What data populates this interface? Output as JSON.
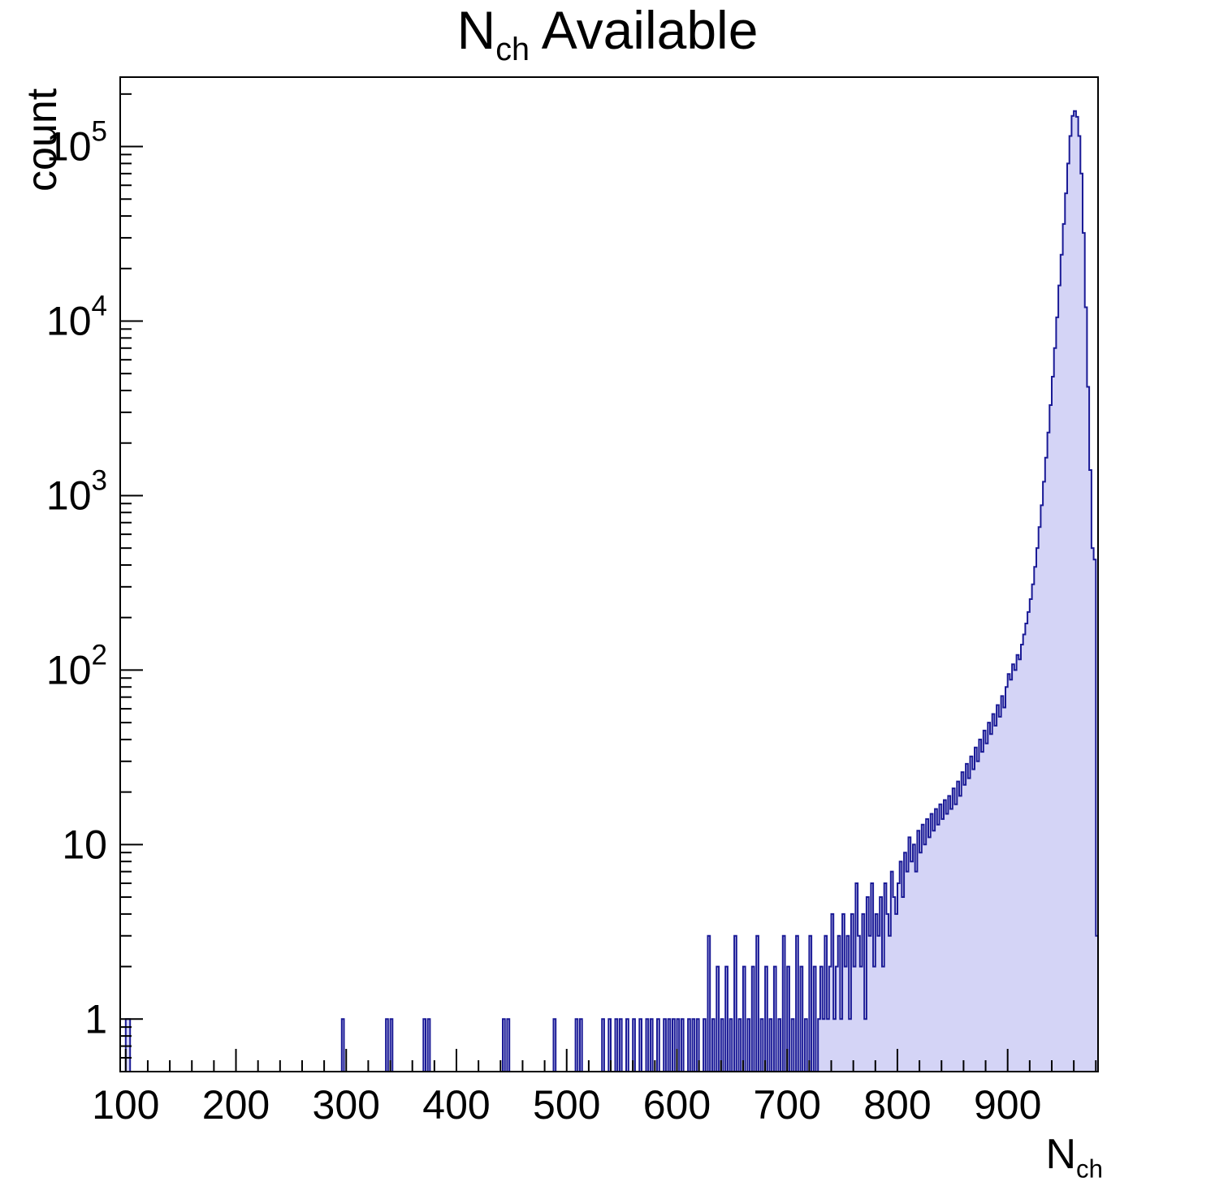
{
  "chart_data": {
    "type": "histogram",
    "title": "N_ch Available",
    "title_parts": {
      "main": "N",
      "sub": "ch",
      "rest": " Available"
    },
    "xlabel": "N_ch",
    "xlabel_parts": {
      "main": "N",
      "sub": "ch"
    },
    "ylabel": "count",
    "x_range": [
      95,
      982
    ],
    "y_range": [
      0.5,
      250000
    ],
    "y_scale": "log",
    "grid": false,
    "legend": "none",
    "bin_width": 2,
    "x_major_ticks": [
      100,
      200,
      300,
      400,
      500,
      600,
      700,
      800,
      900
    ],
    "x_minor_step": 20,
    "y_major_ticks": [
      {
        "v": 1,
        "label": "1"
      },
      {
        "v": 10,
        "label": "10"
      },
      {
        "v": 100,
        "label": "10",
        "exp": "2"
      },
      {
        "v": 1000,
        "label": "10",
        "exp": "3"
      },
      {
        "v": 10000,
        "label": "10",
        "exp": "4"
      },
      {
        "v": 100000,
        "label": "10",
        "exp": "5"
      }
    ],
    "colors": {
      "line": "#1a1a96",
      "fill": "#d4d4f6",
      "frame": "#000000"
    },
    "bins": [
      [
        100,
        1
      ],
      [
        102,
        1
      ],
      [
        296,
        1
      ],
      [
        336,
        1
      ],
      [
        340,
        1
      ],
      [
        370,
        1
      ],
      [
        374,
        1
      ],
      [
        442,
        1
      ],
      [
        446,
        1
      ],
      [
        488,
        1
      ],
      [
        508,
        1
      ],
      [
        512,
        1
      ],
      [
        532,
        1
      ],
      [
        538,
        1
      ],
      [
        544,
        1
      ],
      [
        548,
        1
      ],
      [
        554,
        1
      ],
      [
        560,
        1
      ],
      [
        566,
        1
      ],
      [
        572,
        1
      ],
      [
        576,
        1
      ],
      [
        582,
        1
      ],
      [
        588,
        1
      ],
      [
        592,
        1
      ],
      [
        596,
        1
      ],
      [
        600,
        1
      ],
      [
        604,
        1
      ],
      [
        610,
        1
      ],
      [
        614,
        1
      ],
      [
        618,
        1
      ],
      [
        624,
        1
      ],
      [
        628,
        3
      ],
      [
        632,
        1
      ],
      [
        636,
        2
      ],
      [
        640,
        1
      ],
      [
        644,
        2
      ],
      [
        648,
        1
      ],
      [
        652,
        3
      ],
      [
        656,
        1
      ],
      [
        660,
        2
      ],
      [
        664,
        1
      ],
      [
        668,
        2
      ],
      [
        672,
        3
      ],
      [
        676,
        1
      ],
      [
        680,
        2
      ],
      [
        684,
        1
      ],
      [
        688,
        2
      ],
      [
        692,
        1
      ],
      [
        696,
        3
      ],
      [
        700,
        2
      ],
      [
        704,
        1
      ],
      [
        708,
        3
      ],
      [
        712,
        2
      ],
      [
        716,
        1
      ],
      [
        720,
        3
      ],
      [
        724,
        2
      ],
      [
        728,
        1
      ],
      [
        730,
        2
      ],
      [
        732,
        1
      ],
      [
        734,
        3
      ],
      [
        736,
        1
      ],
      [
        738,
        2
      ],
      [
        740,
        4
      ],
      [
        742,
        1
      ],
      [
        744,
        2
      ],
      [
        746,
        3
      ],
      [
        748,
        1
      ],
      [
        750,
        4
      ],
      [
        752,
        2
      ],
      [
        754,
        3
      ],
      [
        756,
        1
      ],
      [
        758,
        4
      ],
      [
        760,
        2
      ],
      [
        762,
        6
      ],
      [
        764,
        3
      ],
      [
        766,
        2
      ],
      [
        768,
        4
      ],
      [
        770,
        1
      ],
      [
        772,
        5
      ],
      [
        774,
        3
      ],
      [
        776,
        6
      ],
      [
        778,
        2
      ],
      [
        780,
        4
      ],
      [
        782,
        3
      ],
      [
        784,
        5
      ],
      [
        786,
        2
      ],
      [
        788,
        6
      ],
      [
        790,
        4
      ],
      [
        792,
        3
      ],
      [
        794,
        7
      ],
      [
        796,
        5
      ],
      [
        798,
        4
      ],
      [
        800,
        6
      ],
      [
        802,
        8
      ],
      [
        804,
        5
      ],
      [
        806,
        9
      ],
      [
        808,
        7
      ],
      [
        810,
        11
      ],
      [
        812,
        8
      ],
      [
        814,
        10
      ],
      [
        816,
        7
      ],
      [
        818,
        12
      ],
      [
        820,
        9
      ],
      [
        822,
        13
      ],
      [
        824,
        10
      ],
      [
        826,
        14
      ],
      [
        828,
        11
      ],
      [
        830,
        15
      ],
      [
        832,
        12
      ],
      [
        834,
        16
      ],
      [
        836,
        13
      ],
      [
        838,
        17
      ],
      [
        840,
        14
      ],
      [
        842,
        18
      ],
      [
        844,
        15
      ],
      [
        846,
        19
      ],
      [
        848,
        16
      ],
      [
        850,
        21
      ],
      [
        852,
        17
      ],
      [
        854,
        23
      ],
      [
        856,
        19
      ],
      [
        858,
        26
      ],
      [
        860,
        22
      ],
      [
        862,
        29
      ],
      [
        864,
        24
      ],
      [
        866,
        32
      ],
      [
        868,
        27
      ],
      [
        870,
        36
      ],
      [
        872,
        30
      ],
      [
        874,
        40
      ],
      [
        876,
        34
      ],
      [
        878,
        45
      ],
      [
        880,
        38
      ],
      [
        882,
        50
      ],
      [
        884,
        43
      ],
      [
        886,
        56
      ],
      [
        888,
        48
      ],
      [
        890,
        63
      ],
      [
        892,
        54
      ],
      [
        894,
        71
      ],
      [
        896,
        61
      ],
      [
        898,
        80
      ],
      [
        900,
        95
      ],
      [
        902,
        88
      ],
      [
        904,
        108
      ],
      [
        906,
        100
      ],
      [
        908,
        122
      ],
      [
        910,
        115
      ],
      [
        912,
        140
      ],
      [
        914,
        160
      ],
      [
        916,
        185
      ],
      [
        918,
        215
      ],
      [
        920,
        255
      ],
      [
        922,
        310
      ],
      [
        924,
        390
      ],
      [
        926,
        500
      ],
      [
        928,
        660
      ],
      [
        930,
        880
      ],
      [
        932,
        1200
      ],
      [
        934,
        1650
      ],
      [
        936,
        2300
      ],
      [
        938,
        3300
      ],
      [
        940,
        4800
      ],
      [
        942,
        7000
      ],
      [
        944,
        10500
      ],
      [
        946,
        16000
      ],
      [
        948,
        24000
      ],
      [
        950,
        36000
      ],
      [
        952,
        54000
      ],
      [
        954,
        80000
      ],
      [
        956,
        115000
      ],
      [
        958,
        150000
      ],
      [
        960,
        160000
      ],
      [
        962,
        148000
      ],
      [
        964,
        115000
      ],
      [
        966,
        70000
      ],
      [
        968,
        32000
      ],
      [
        970,
        12000
      ],
      [
        972,
        4200
      ],
      [
        974,
        1400
      ],
      [
        976,
        500
      ],
      [
        978,
        430
      ],
      [
        980,
        3
      ]
    ]
  }
}
